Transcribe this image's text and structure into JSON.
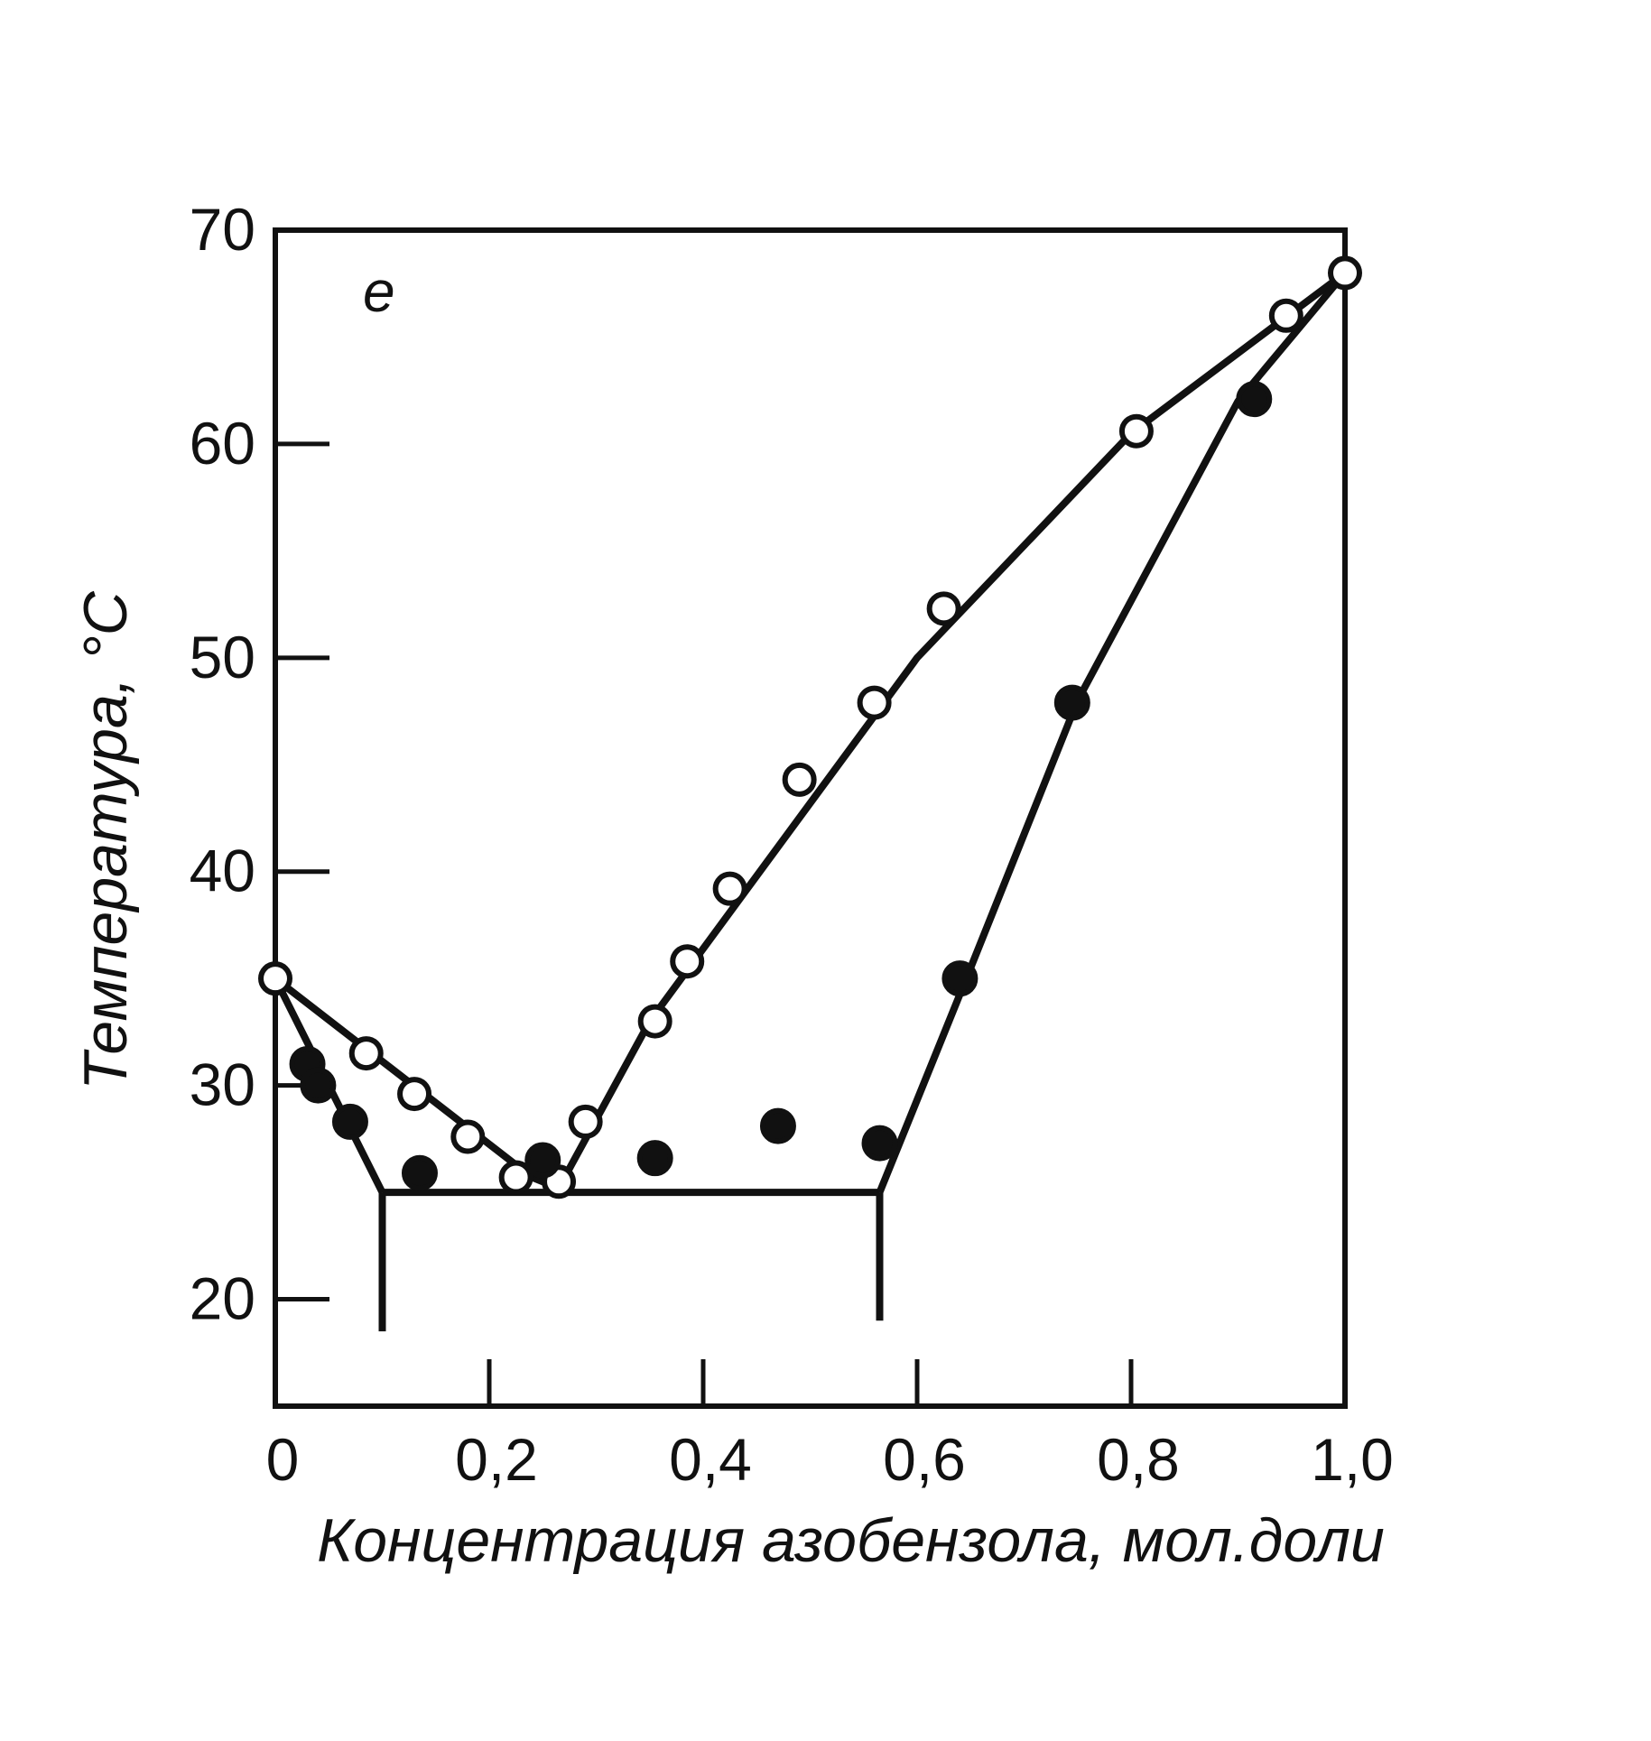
{
  "chart_data": {
    "type": "scatter",
    "panel_label": "e",
    "xlabel": "Концентрация азобензола, мол.доли",
    "ylabel": "Температура, °C",
    "xlim": [
      0,
      1.0
    ],
    "ylim": [
      15,
      70
    ],
    "x_ticks": [
      0,
      0.2,
      0.4,
      0.6,
      0.8,
      1.0
    ],
    "x_tick_labels": [
      "0",
      "0,2",
      "0,4",
      "0,6",
      "0,8",
      "1,0"
    ],
    "y_ticks": [
      20,
      30,
      40,
      50,
      60,
      70
    ],
    "y_tick_labels": [
      "20",
      "30",
      "40",
      "50",
      "60",
      "70"
    ],
    "grid": false,
    "legend": "none",
    "series": [
      {
        "marker": "open-circle",
        "points": [
          [
            0.0,
            35.0
          ],
          [
            0.085,
            31.5
          ],
          [
            0.13,
            29.6
          ],
          [
            0.18,
            27.6
          ],
          [
            0.225,
            25.7
          ],
          [
            0.265,
            25.5
          ],
          [
            0.29,
            28.3
          ],
          [
            0.355,
            33.0
          ],
          [
            0.385,
            35.8
          ],
          [
            0.425,
            39.2
          ],
          [
            0.49,
            44.3
          ],
          [
            0.56,
            47.9
          ],
          [
            0.625,
            52.3
          ],
          [
            0.805,
            60.6
          ],
          [
            0.945,
            66.0
          ],
          [
            1.0,
            68.0
          ]
        ]
      },
      {
        "marker": "filled-circle",
        "points": [
          [
            0.03,
            31.0
          ],
          [
            0.04,
            30.0
          ],
          [
            0.07,
            28.3
          ],
          [
            0.135,
            25.9
          ],
          [
            0.25,
            26.5
          ],
          [
            0.355,
            26.6
          ],
          [
            0.47,
            28.1
          ],
          [
            0.565,
            27.3
          ],
          [
            0.64,
            35.0
          ],
          [
            0.745,
            47.9
          ],
          [
            0.915,
            62.1
          ]
        ]
      }
    ],
    "curves": [
      {
        "style": "solid",
        "points": [
          [
            0.0,
            35.0
          ],
          [
            0.24,
            25.7
          ],
          [
            0.265,
            25.2
          ],
          [
            0.35,
            33.0
          ],
          [
            0.6,
            50.0
          ],
          [
            0.8,
            60.5
          ],
          [
            1.0,
            68.0
          ]
        ]
      },
      {
        "style": "solid",
        "points": [
          [
            0.0,
            35.0
          ],
          [
            0.1,
            25.0
          ]
        ]
      },
      {
        "style": "solid",
        "points": [
          [
            0.1,
            25.0
          ],
          [
            0.565,
            25.0
          ]
        ]
      },
      {
        "style": "solid",
        "points": [
          [
            0.565,
            25.0
          ],
          [
            0.65,
            35.5
          ],
          [
            0.75,
            48.0
          ],
          [
            0.9,
            62.0
          ],
          [
            1.0,
            68.0
          ]
        ]
      },
      {
        "style": "solid",
        "points": [
          [
            0.1,
            25.0
          ],
          [
            0.1,
            18.5
          ]
        ]
      },
      {
        "style": "solid",
        "points": [
          [
            0.565,
            25.0
          ],
          [
            0.565,
            19.0
          ]
        ]
      }
    ]
  }
}
